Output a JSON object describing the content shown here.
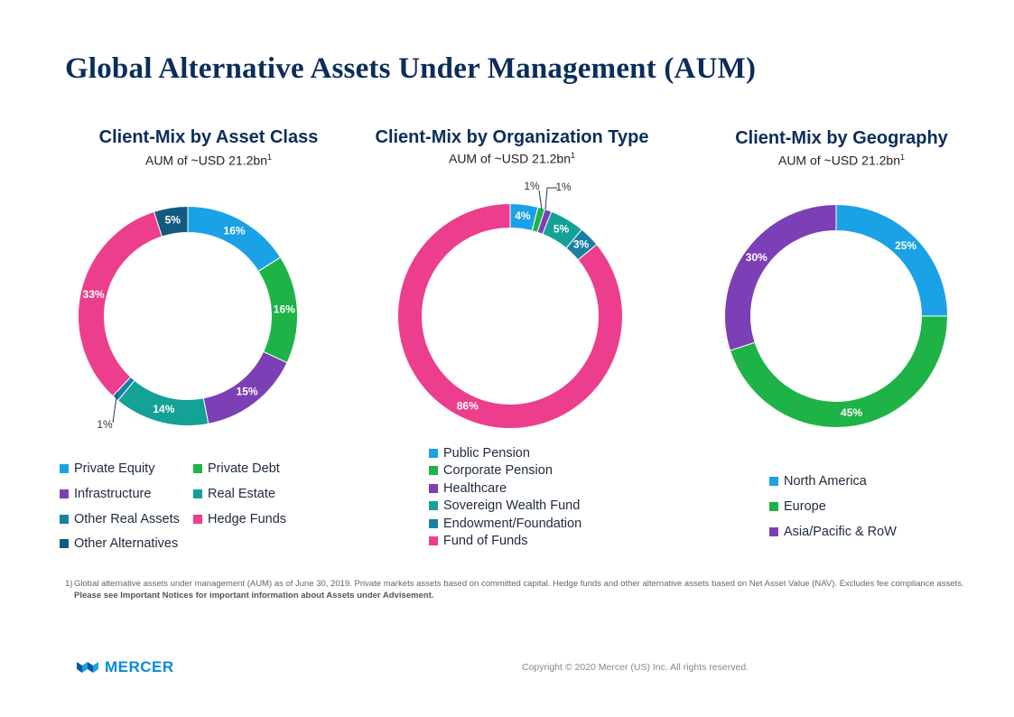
{
  "page_title": "Global Alternative Assets Under Management (AUM)",
  "chart_data": [
    {
      "type": "pie",
      "title": "Client-Mix by Asset Class",
      "subtitle": "AUM of ~USD 21.2bn",
      "subtitle_sup": "1",
      "categories": [
        "Private Equity",
        "Private Debt",
        "Infrastructure",
        "Real Estate",
        "Other Real Assets",
        "Hedge Funds",
        "Other Alternatives"
      ],
      "values": [
        16,
        16,
        15,
        14,
        1,
        33,
        5
      ],
      "labels": [
        "16%",
        "16%",
        "15%",
        "14%",
        "1%",
        "33%",
        "5%"
      ],
      "colors": [
        "#1aa1e6",
        "#1db347",
        "#7d3fb5",
        "#14a196",
        "#1a7fa3",
        "#ec3e8c",
        "#145a80"
      ]
    },
    {
      "type": "pie",
      "title": "Client-Mix by Organization Type",
      "subtitle": "AUM of ~USD 21.2bn",
      "subtitle_sup": "1",
      "categories": [
        "Public Pension",
        "Corporate Pension",
        "Healthcare",
        "Sovereign Wealth Fund",
        "Endowment/Foundation",
        "Fund of Funds"
      ],
      "values": [
        4,
        1,
        1,
        5,
        3,
        86
      ],
      "labels": [
        "4%",
        "1%",
        "1%",
        "5%",
        "3%",
        "86%"
      ],
      "colors": [
        "#1aa1e6",
        "#1db347",
        "#7d3fb5",
        "#14a196",
        "#1a7fa3",
        "#ec3e8c"
      ]
    },
    {
      "type": "pie",
      "title": "Client-Mix by Geography",
      "subtitle": "AUM of ~USD 21.2bn",
      "subtitle_sup": "1",
      "categories": [
        "North America",
        "Europe",
        "Asia/Pacific & RoW"
      ],
      "values": [
        25,
        45,
        30
      ],
      "labels": [
        "25%",
        "45%",
        "30%"
      ],
      "colors": [
        "#1aa1e6",
        "#1db347",
        "#7d3fb5"
      ]
    }
  ],
  "footnote": {
    "number": "1)",
    "text": "Global alternative assets under management (AUM) as of June 30, 2019. Private markets assets based on committed capital. Hedge funds and other alternative assets based on Net Asset Value (NAV). Excludes fee compliance assets. ",
    "bold": "Please see Important Notices for important information about Assets under Advisement."
  },
  "logo_text": "MERCER",
  "copyright": "Copyright © 2020 Mercer (US) Inc. All rights reserved."
}
